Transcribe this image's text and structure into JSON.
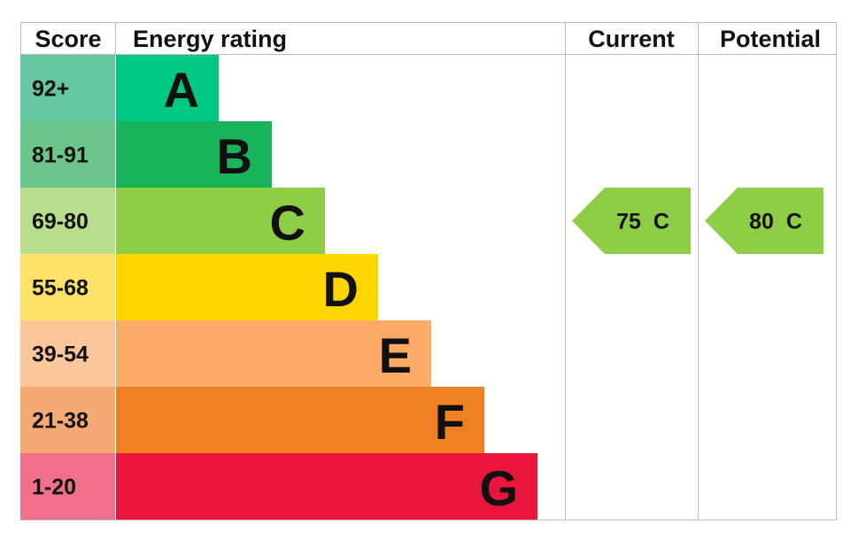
{
  "header": {
    "score": "Score",
    "rating": "Energy rating",
    "current": "Current",
    "potential": "Potential"
  },
  "rows": [
    {
      "score": "92+",
      "rating": "A",
      "score_color": "#64c8a0",
      "color": "#00c781"
    },
    {
      "score": "81-91",
      "rating": "B",
      "score_color": "#6ac68a",
      "color": "#19b459"
    },
    {
      "score": "69-80",
      "rating": "C",
      "score_color": "#b8de8c",
      "color": "#8dce46"
    },
    {
      "score": "55-68",
      "rating": "D",
      "score_color": "#fde26a",
      "color": "#ffd500"
    },
    {
      "score": "39-54",
      "rating": "E",
      "score_color": "#fcc59a",
      "color": "#fcaa65"
    },
    {
      "score": "21-38",
      "rating": "F",
      "score_color": "#f4aa72",
      "color": "#ef8023"
    },
    {
      "score": "1-20",
      "rating": "G",
      "score_color": "#f0708a",
      "color": "#e9153b"
    }
  ],
  "current": {
    "value": 75,
    "rating": "C"
  },
  "potential": {
    "value": 80,
    "rating": "C"
  }
}
